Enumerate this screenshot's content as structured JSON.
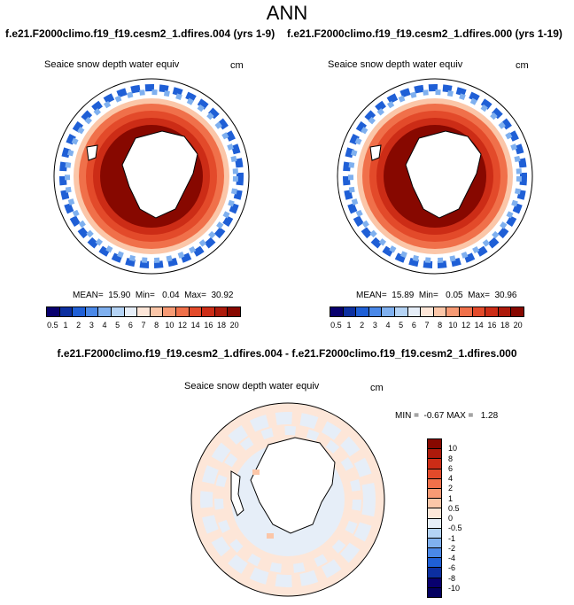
{
  "title": "ANN",
  "panels": [
    {
      "case": "f.e21.F2000climo.f19_f19.cesm2_1.dfires.004 (yrs 1-9)",
      "variable": "Seaice snow depth water equiv",
      "units": "cm",
      "stats": "MEAN=  15.90  Min=   0.04  Max=  30.92"
    },
    {
      "case": "f.e21.F2000climo.f19_f19.cesm2_1.dfires.000 (yrs 1-19)",
      "variable": "Seaice snow depth water equiv",
      "units": "cm",
      "stats": "MEAN=  15.89  Min=   0.05  Max=  30.96"
    }
  ],
  "top_colorbar": {
    "colors": [
      "#08006e",
      "#0c2fa0",
      "#1f5fd6",
      "#4a88e8",
      "#7fb0ef",
      "#b4d3f5",
      "#e6eef8",
      "#fde6d8",
      "#fbc6a8",
      "#f79a74",
      "#f0704a",
      "#e34a2a",
      "#cc2c16",
      "#ad1a0b",
      "#870800"
    ],
    "labels": [
      "0.5",
      "1",
      "2",
      "3",
      "4",
      "5",
      "6",
      "7",
      "8",
      "10",
      "12",
      "14",
      "16",
      "18",
      "20"
    ]
  },
  "diff_panel": {
    "title": "f.e21.F2000climo.f19_f19.cesm2_1.dfires.004 - f.e21.F2000climo.f19_f19.cesm2_1.dfires.000",
    "variable": "Seaice snow depth water equiv",
    "units": "cm",
    "stats": "MIN =  -0.67 MAX =   1.28"
  },
  "diff_colorbar": {
    "colors": [
      "#870800",
      "#ad1a0b",
      "#cc2c16",
      "#e34a2a",
      "#f0704a",
      "#f79a74",
      "#fbc6a8",
      "#fde6d8",
      "#e6eef8",
      "#b4d3f5",
      "#7fb0ef",
      "#4a88e8",
      "#1f5fd6",
      "#0c2fa0",
      "#08006e",
      "#030060"
    ],
    "labels": [
      "10",
      "8",
      "6",
      "4",
      "2",
      "1",
      "0.5",
      "0",
      "-0.5",
      "-1",
      "-2",
      "-4",
      "-6",
      "-8",
      "-10"
    ]
  }
}
